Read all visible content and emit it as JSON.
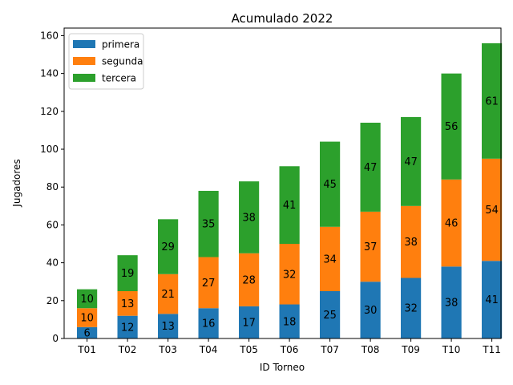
{
  "chart_data": {
    "type": "bar",
    "stacked": true,
    "title": "Acumulado 2022",
    "xlabel": "ID Torneo",
    "ylabel": "Jugadores",
    "categories": [
      "T01",
      "T02",
      "T03",
      "T04",
      "T05",
      "T06",
      "T07",
      "T08",
      "T09",
      "T10",
      "T11"
    ],
    "series": [
      {
        "name": "primera",
        "color": "#1f77b4",
        "values": [
          6,
          12,
          13,
          16,
          17,
          18,
          25,
          30,
          32,
          38,
          41
        ]
      },
      {
        "name": "segunda",
        "color": "#ff7f0e",
        "values": [
          10,
          13,
          21,
          27,
          28,
          32,
          34,
          37,
          38,
          46,
          54
        ]
      },
      {
        "name": "tercera",
        "color": "#2ca02c",
        "values": [
          10,
          19,
          29,
          35,
          38,
          41,
          45,
          47,
          47,
          56,
          61
        ]
      }
    ],
    "ylim": [
      0,
      164
    ],
    "yticks": [
      0,
      20,
      40,
      60,
      80,
      100,
      120,
      140,
      160
    ],
    "grid": false,
    "legend_position": "top-left",
    "data_labels": true
  }
}
